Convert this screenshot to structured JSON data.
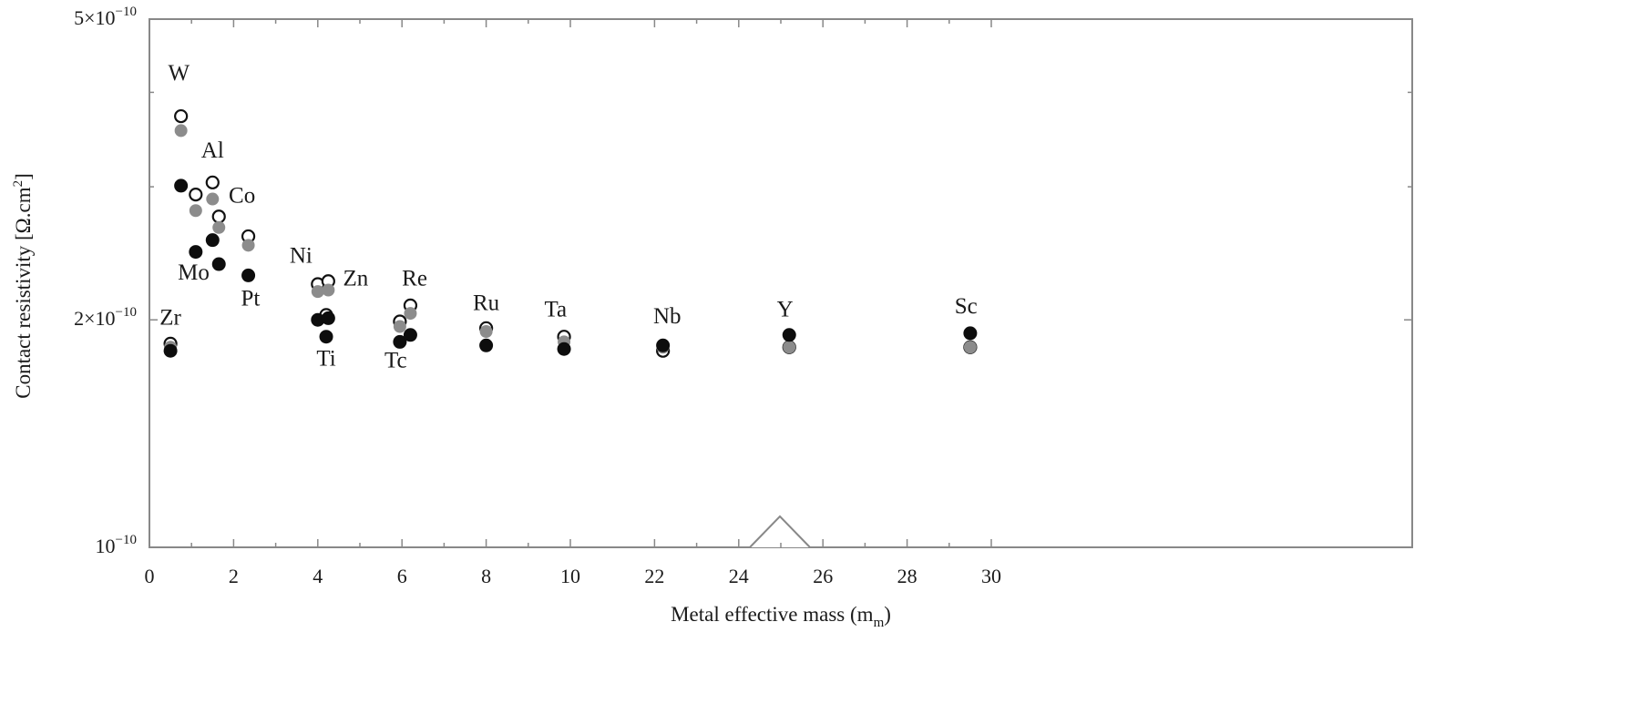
{
  "chart_data": {
    "type": "scatter",
    "xlabel": {
      "text": "Metal effective mass (m",
      "sub": "m",
      "end": ")"
    },
    "ylabel": {
      "text": "Contact resistivity [Ω.cm",
      "sup": "2",
      "end": "]"
    },
    "y_scale": "log",
    "ylim": [
      1e-10,
      5e-10
    ],
    "x_axis_note": "broken axis: 0–10 linear, then 22–30",
    "x_ticks": [
      "0",
      "2",
      "4",
      "6",
      "8",
      "10",
      "22",
      "24",
      "26",
      "28",
      "30"
    ],
    "y_ticks": [
      {
        "value": 5e-10,
        "mantissa": "5×10",
        "exp": "−10"
      },
      {
        "value": 2e-10,
        "mantissa": "2×10",
        "exp": "−10"
      },
      {
        "value": 1e-10,
        "mantissa": "10",
        "exp": "−10"
      }
    ],
    "grid": false,
    "legend": "none",
    "colors": {
      "open": "#ffffff",
      "gray": "#8c8c8c",
      "black": "#0d0d0d"
    },
    "series": [
      {
        "style": "open",
        "points": [
          {
            "x": 0.75,
            "y": 3.72e-10
          },
          {
            "x": 1.1,
            "y": 2.93e-10
          },
          {
            "x": 1.5,
            "y": 3.04e-10
          },
          {
            "x": 1.65,
            "y": 2.74e-10
          },
          {
            "x": 2.35,
            "y": 2.58e-10
          },
          {
            "x": 4.0,
            "y": 2.23e-10
          },
          {
            "x": 4.25,
            "y": 2.25e-10
          },
          {
            "x": 4.2,
            "y": 2.03e-10
          },
          {
            "x": 5.95,
            "y": 1.99e-10
          },
          {
            "x": 6.2,
            "y": 2.09e-10
          },
          {
            "x": 8.0,
            "y": 1.95e-10
          },
          {
            "x": 9.85,
            "y": 1.9e-10
          },
          {
            "x": 10.5,
            "y": 1.86e-10
          },
          {
            "x": 22.2,
            "y": 1.82e-10
          },
          {
            "x": 25.2,
            "y": 1.84e-10
          },
          {
            "x": 29.5,
            "y": 1.84e-10
          }
        ]
      },
      {
        "style": "gray",
        "points": [
          {
            "x": 0.75,
            "y": 3.56e-10
          },
          {
            "x": 1.1,
            "y": 2.79e-10
          },
          {
            "x": 1.5,
            "y": 2.89e-10
          },
          {
            "x": 1.65,
            "y": 2.65e-10
          },
          {
            "x": 2.35,
            "y": 2.51e-10
          },
          {
            "x": 4.0,
            "y": 2.18e-10
          },
          {
            "x": 4.25,
            "y": 2.19e-10
          },
          {
            "x": 5.95,
            "y": 1.96e-10
          },
          {
            "x": 6.2,
            "y": 2.04e-10
          },
          {
            "x": 8.0,
            "y": 1.93e-10
          },
          {
            "x": 9.85,
            "y": 1.87e-10
          },
          {
            "x": 10.5,
            "y": 1.84e-10
          },
          {
            "x": 22.2,
            "y": 1.84e-10
          },
          {
            "x": 25.2,
            "y": 1.84e-10
          },
          {
            "x": 29.5,
            "y": 1.84e-10
          }
        ]
      },
      {
        "style": "black",
        "points": [
          {
            "x": 0.75,
            "y": 3.01e-10
          },
          {
            "x": 1.1,
            "y": 2.46e-10
          },
          {
            "x": 1.5,
            "y": 2.55e-10
          },
          {
            "x": 1.65,
            "y": 2.37e-10
          },
          {
            "x": 2.35,
            "y": 2.29e-10
          },
          {
            "x": 4.0,
            "y": 2e-10
          },
          {
            "x": 4.25,
            "y": 2.01e-10
          },
          {
            "x": 4.2,
            "y": 1.9e-10
          },
          {
            "x": 5.95,
            "y": 1.87e-10
          },
          {
            "x": 6.2,
            "y": 1.91e-10
          },
          {
            "x": 8.0,
            "y": 1.85e-10
          },
          {
            "x": 9.85,
            "y": 1.83e-10
          },
          {
            "x": 10.5,
            "y": 1.82e-10
          },
          {
            "x": 22.2,
            "y": 1.85e-10
          },
          {
            "x": 25.2,
            "y": 1.91e-10
          },
          {
            "x": 29.5,
            "y": 1.92e-10
          }
        ]
      }
    ],
    "annotations": [
      {
        "text": "W",
        "x": 0.7,
        "y": 4.15e-10
      },
      {
        "text": "Al",
        "x": 1.5,
        "y": 3.28e-10
      },
      {
        "text": "Co",
        "x": 2.2,
        "y": 2.86e-10
      },
      {
        "text": "Mo",
        "x": 1.05,
        "y": 2.26e-10
      },
      {
        "text": "Pt",
        "x": 2.4,
        "y": 2.09e-10
      },
      {
        "text": "Ni",
        "x": 3.6,
        "y": 2.38e-10
      },
      {
        "text": "Zn",
        "x": 4.9,
        "y": 2.22e-10
      },
      {
        "text": "Ti",
        "x": 4.2,
        "y": 1.74e-10
      },
      {
        "text": "Re",
        "x": 6.3,
        "y": 2.22e-10
      },
      {
        "text": "Tc",
        "x": 5.85,
        "y": 1.73e-10
      },
      {
        "text": "Ru",
        "x": 8.0,
        "y": 2.06e-10
      },
      {
        "text": "Ta",
        "x": 9.65,
        "y": 2.02e-10
      },
      {
        "text": "Zr",
        "x": 10.5,
        "y": 1.97e-10
      },
      {
        "text": "Nb",
        "x": 22.3,
        "y": 1.98e-10
      },
      {
        "text": "Y",
        "x": 25.1,
        "y": 2.02e-10
      },
      {
        "text": "Sc",
        "x": 29.4,
        "y": 2.04e-10
      }
    ]
  }
}
